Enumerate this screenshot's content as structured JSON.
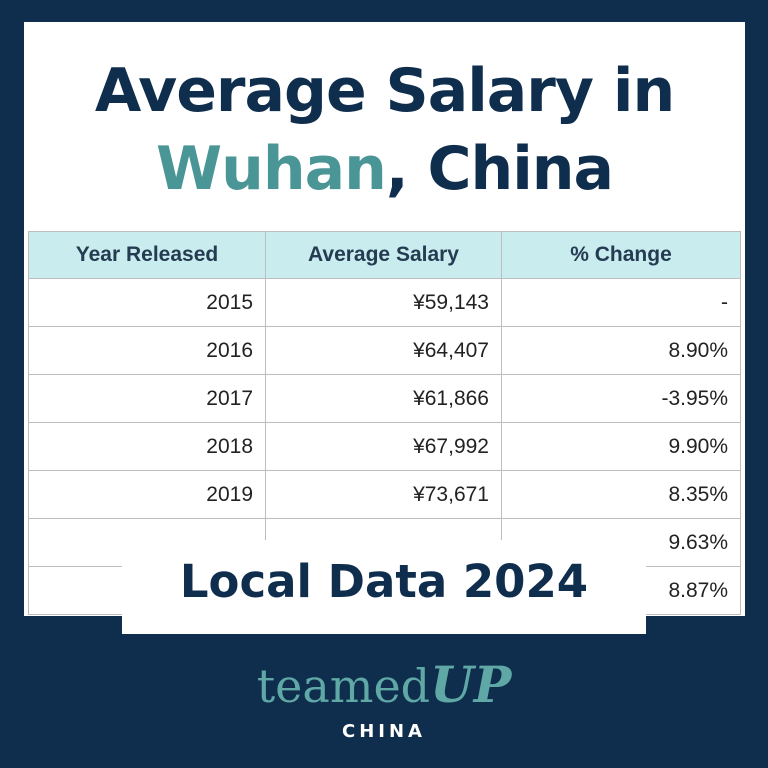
{
  "title": {
    "line1": "Average Salary in",
    "accent": "Wuhan",
    "rest": ", China"
  },
  "table": {
    "headers": [
      "Year Released",
      "Average Salary",
      "% Change"
    ],
    "rows": [
      [
        "2015",
        "¥59,143",
        "-"
      ],
      [
        "2016",
        "¥64,407",
        "8.90%"
      ],
      [
        "2017",
        "¥61,866",
        "-3.95%"
      ],
      [
        "2018",
        "¥67,992",
        "9.90%"
      ],
      [
        "2019",
        "¥73,671",
        "8.35%"
      ],
      [
        "",
        "",
        "9.63%"
      ],
      [
        "",
        "",
        "8.87%"
      ]
    ]
  },
  "banner": "Local Data 2024",
  "logo": {
    "main": "teamed",
    "main_bold": "UP",
    "sub": "CHINA"
  },
  "colors": {
    "background": "#0f2d4c",
    "accent": "#4a9595",
    "header_fill": "#c9ecee"
  }
}
